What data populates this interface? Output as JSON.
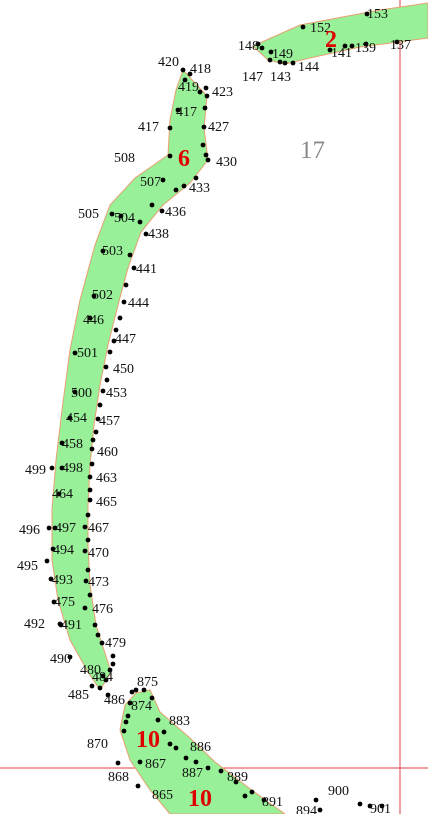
{
  "map": {
    "colors": {
      "fill": "#98f098",
      "outline": "#e8a070",
      "points": "#000000",
      "grid_lines": "#e04040",
      "area_label": "#8a8a8a",
      "parcel_label": "#e00000"
    },
    "area_label": "17",
    "parcel_labels": [
      "2",
      "6",
      "10",
      "10"
    ],
    "point_labels": [
      "153",
      "152",
      "148",
      "149",
      "141",
      "139",
      "137",
      "147",
      "143",
      "144",
      "420",
      "418",
      "419",
      "423",
      "417",
      "427",
      "417",
      "508",
      "430",
      "507",
      "433",
      "505",
      "504",
      "436",
      "438",
      "503",
      "441",
      "502",
      "444",
      "446",
      "447",
      "501",
      "450",
      "500",
      "453",
      "454",
      "457",
      "458",
      "460",
      "499",
      "498",
      "463",
      "464",
      "465",
      "496",
      "497",
      "467",
      "494",
      "470",
      "495",
      "493",
      "473",
      "475",
      "476",
      "492",
      "491",
      "479",
      "490",
      "480",
      "484",
      "485",
      "875",
      "486",
      "874",
      "883",
      "870",
      "886",
      "868",
      "867",
      "887",
      "889",
      "865",
      "891",
      "900",
      "894",
      "901"
    ]
  }
}
